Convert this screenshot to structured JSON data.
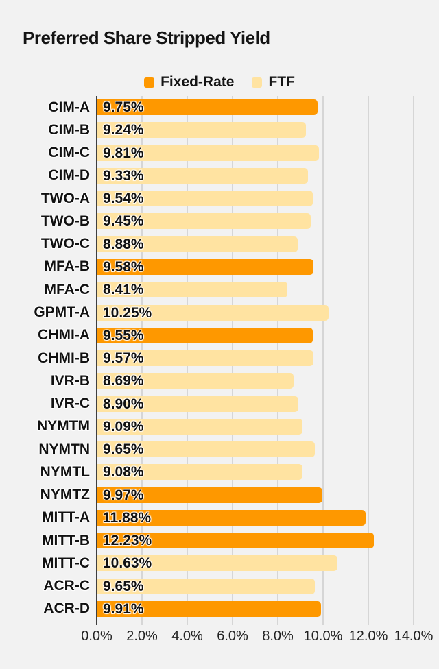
{
  "page": {
    "background": "#f2f2f2"
  },
  "chart_data": {
    "type": "bar",
    "orientation": "horizontal",
    "title": "Preferred Share Stripped Yield",
    "legend_position": "top-center",
    "grid": true,
    "xlim": [
      0,
      14
    ],
    "x_tick_values": [
      0,
      2,
      4,
      6,
      8,
      10,
      12,
      14
    ],
    "x_ticks": [
      "0.0%",
      "2.0%",
      "4.0%",
      "6.0%",
      "8.0%",
      "10.0%",
      "12.0%",
      "14.0%"
    ],
    "legend": [
      {
        "name": "Fixed-Rate",
        "color": "#FE9800"
      },
      {
        "name": "FTF",
        "color": "#FFE3A1"
      }
    ],
    "colors": {
      "grid": "#d6d6d6",
      "axis": "#3f3f3f",
      "background": "#f2f2f2",
      "text": "#111111"
    },
    "bars": [
      {
        "label": "CIM-A",
        "value": 9.75,
        "value_label": "9.75%",
        "series": "Fixed-Rate"
      },
      {
        "label": "CIM-B",
        "value": 9.24,
        "value_label": "9.24%",
        "series": "FTF"
      },
      {
        "label": "CIM-C",
        "value": 9.81,
        "value_label": "9.81%",
        "series": "FTF"
      },
      {
        "label": "CIM-D",
        "value": 9.33,
        "value_label": "9.33%",
        "series": "FTF"
      },
      {
        "label": "TWO-A",
        "value": 9.54,
        "value_label": "9.54%",
        "series": "FTF"
      },
      {
        "label": "TWO-B",
        "value": 9.45,
        "value_label": "9.45%",
        "series": "FTF"
      },
      {
        "label": "TWO-C",
        "value": 8.88,
        "value_label": "8.88%",
        "series": "FTF"
      },
      {
        "label": "MFA-B",
        "value": 9.58,
        "value_label": "9.58%",
        "series": "Fixed-Rate"
      },
      {
        "label": "MFA-C",
        "value": 8.41,
        "value_label": "8.41%",
        "series": "FTF"
      },
      {
        "label": "GPMT-A",
        "value": 10.25,
        "value_label": "10.25%",
        "series": "FTF"
      },
      {
        "label": "CHMI-A",
        "value": 9.55,
        "value_label": "9.55%",
        "series": "Fixed-Rate"
      },
      {
        "label": "CHMI-B",
        "value": 9.57,
        "value_label": "9.57%",
        "series": "FTF"
      },
      {
        "label": "IVR-B",
        "value": 8.69,
        "value_label": "8.69%",
        "series": "FTF"
      },
      {
        "label": "IVR-C",
        "value": 8.9,
        "value_label": "8.90%",
        "series": "FTF"
      },
      {
        "label": "NYMTM",
        "value": 9.09,
        "value_label": "9.09%",
        "series": "FTF"
      },
      {
        "label": "NYMTN",
        "value": 9.65,
        "value_label": "9.65%",
        "series": "FTF"
      },
      {
        "label": "NYMTL",
        "value": 9.08,
        "value_label": "9.08%",
        "series": "FTF"
      },
      {
        "label": "NYMTZ",
        "value": 9.97,
        "value_label": "9.97%",
        "series": "Fixed-Rate"
      },
      {
        "label": "MITT-A",
        "value": 11.88,
        "value_label": "11.88%",
        "series": "Fixed-Rate"
      },
      {
        "label": "MITT-B",
        "value": 12.23,
        "value_label": "12.23%",
        "series": "Fixed-Rate"
      },
      {
        "label": "MITT-C",
        "value": 10.63,
        "value_label": "10.63%",
        "series": "FTF"
      },
      {
        "label": "ACR-C",
        "value": 9.65,
        "value_label": "9.65%",
        "series": "FTF"
      },
      {
        "label": "ACR-D",
        "value": 9.91,
        "value_label": "9.91%",
        "series": "Fixed-Rate"
      }
    ]
  }
}
